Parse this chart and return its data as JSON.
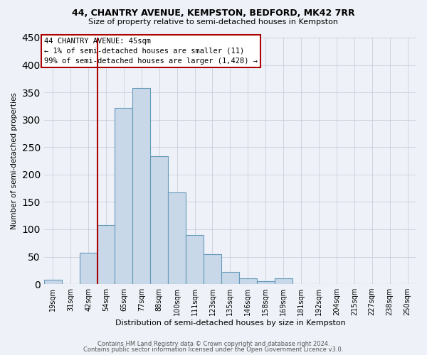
{
  "title1": "44, CHANTRY AVENUE, KEMPSTON, BEDFORD, MK42 7RR",
  "title2": "Size of property relative to semi-detached houses in Kempston",
  "xlabel": "Distribution of semi-detached houses by size in Kempston",
  "ylabel": "Number of semi-detached properties",
  "bar_labels": [
    "19sqm",
    "31sqm",
    "42sqm",
    "54sqm",
    "65sqm",
    "77sqm",
    "88sqm",
    "100sqm",
    "111sqm",
    "123sqm",
    "135sqm",
    "146sqm",
    "158sqm",
    "169sqm",
    "181sqm",
    "192sqm",
    "204sqm",
    "215sqm",
    "227sqm",
    "238sqm",
    "250sqm"
  ],
  "bar_values": [
    8,
    0,
    57,
    108,
    322,
    358,
    234,
    168,
    90,
    55,
    22,
    10,
    5,
    10,
    0,
    0,
    0,
    0,
    0,
    0,
    0
  ],
  "bar_color": "#c8d8e8",
  "bar_edge_color": "#6699bb",
  "vline_color": "#aa0000",
  "annotation_text": "44 CHANTRY AVENUE: 45sqm\n← 1% of semi-detached houses are smaller (11)\n99% of semi-detached houses are larger (1,428) →",
  "annotation_box_color": "#ffffff",
  "annotation_box_edge": "#aa0000",
  "ylim": [
    0,
    450
  ],
  "yticks": [
    0,
    50,
    100,
    150,
    200,
    250,
    300,
    350,
    400,
    450
  ],
  "footer1": "Contains HM Land Registry data © Crown copyright and database right 2024.",
  "footer2": "Contains public sector information licensed under the Open Government Licence v3.0.",
  "bg_color": "#eef2f8"
}
